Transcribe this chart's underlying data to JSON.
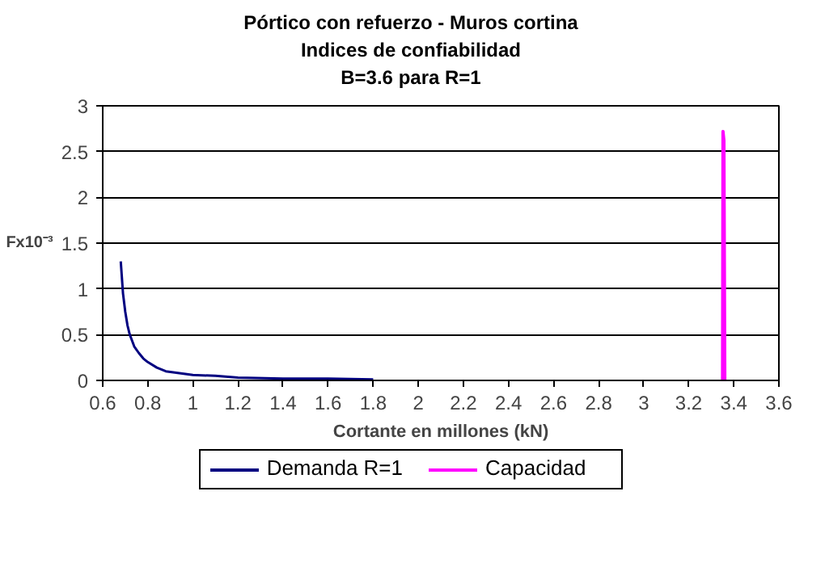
{
  "chart_data": {
    "type": "line",
    "title": "Pórtico con refuerzo - Muros cortina\nIndices de confiabilidad\nB=3.6 para R=1",
    "xlabel": "Cortante en millones (kN)",
    "ylabel": "Fx10⁻³",
    "series": [
      {
        "name": "Demanda R=1",
        "color": "#000080",
        "x": [
          0.68,
          0.69,
          0.7,
          0.71,
          0.72,
          0.74,
          0.76,
          0.78,
          0.8,
          0.84,
          0.88,
          0.94,
          1.0,
          1.1,
          1.2,
          1.4,
          1.6,
          1.8
        ],
        "values": [
          1.3,
          0.95,
          0.75,
          0.6,
          0.5,
          0.37,
          0.3,
          0.24,
          0.2,
          0.14,
          0.1,
          0.08,
          0.06,
          0.05,
          0.03,
          0.02,
          0.02,
          0.01
        ]
      },
      {
        "name": "Capacidad",
        "color": "#ff00ff",
        "x": [
          3.35,
          3.352,
          3.356,
          3.36
        ],
        "values": [
          0,
          2.72,
          2.62,
          0
        ]
      }
    ],
    "xlim": [
      0.6,
      3.6
    ],
    "xticks": [
      0.6,
      0.8,
      1,
      1.2,
      1.4,
      1.6,
      1.8,
      2,
      2.2,
      2.4,
      2.6,
      2.8,
      3,
      3.2,
      3.4,
      3.6
    ],
    "ylim": [
      0,
      3
    ],
    "yticks": [
      0,
      0.5,
      1,
      1.5,
      2,
      2.5,
      3
    ],
    "grid": "y",
    "legend": "bottom",
    "line_style": "solid"
  }
}
